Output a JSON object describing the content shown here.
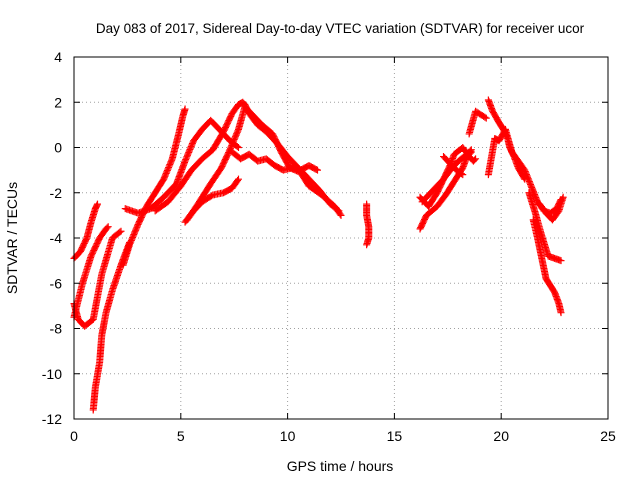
{
  "chart_data": {
    "type": "scatter",
    "title": "Day 083 of 2017, Sidereal Day-to-day VTEC variation (SDTVAR) for receiver ucor",
    "xlabel": "GPS time / hours",
    "ylabel": "SDTVAR / TECUs",
    "xlim": [
      0,
      25
    ],
    "ylim": [
      -12,
      4
    ],
    "xticks": [
      0,
      5,
      10,
      15,
      20,
      25
    ],
    "yticks": [
      -12,
      -10,
      -8,
      -6,
      -4,
      -2,
      0,
      2,
      4
    ],
    "xtick_labels": [
      "0",
      "5",
      "10",
      "15",
      "20",
      "25"
    ],
    "ytick_labels": [
      "-12",
      "-10",
      "-8",
      "-6",
      "-4",
      "-2",
      "0",
      "2",
      "4"
    ],
    "grid": true,
    "marker": "+",
    "color": "#ff0000",
    "series": [
      {
        "x": [
          0.0,
          0.3,
          0.6,
          0.8,
          1.0,
          1.1
        ],
        "y": [
          -4.9,
          -4.6,
          -4.0,
          -3.3,
          -2.7,
          -2.5
        ]
      },
      {
        "x": [
          0.0,
          0.2,
          0.5,
          0.9,
          1.3,
          1.8,
          2.2
        ],
        "y": [
          -6.9,
          -7.6,
          -7.9,
          -7.6,
          -5.6,
          -4.0,
          -3.7
        ]
      },
      {
        "x": [
          0.0,
          0.4,
          0.8,
          1.2,
          1.5,
          1.6
        ],
        "y": [
          -7.5,
          -6.0,
          -4.8,
          -4.0,
          -3.6,
          -3.5
        ]
      },
      {
        "x": [
          0.9,
          1.0,
          1.2,
          1.3,
          1.5,
          1.8,
          2.2,
          2.6
        ],
        "y": [
          -11.6,
          -10.6,
          -9.5,
          -8.3,
          -7.3,
          -6.3,
          -5.2,
          -4.2
        ]
      },
      {
        "x": [
          2.3,
          2.6,
          3.0,
          3.4,
          3.8,
          4.2,
          4.6,
          4.9,
          5.1,
          5.2
        ],
        "y": [
          -5.2,
          -4.3,
          -3.4,
          -2.6,
          -2.0,
          -1.4,
          -0.5,
          0.6,
          1.4,
          1.7
        ]
      },
      {
        "x": [
          2.4,
          3.0,
          3.6,
          4.2,
          4.8,
          5.2,
          5.6,
          6.0,
          6.4,
          6.9,
          7.3,
          7.7
        ],
        "y": [
          -2.7,
          -2.9,
          -2.7,
          -2.2,
          -1.6,
          -0.6,
          0.3,
          0.8,
          1.2,
          0.7,
          0.3,
          0.0
        ]
      },
      {
        "x": [
          5.3,
          5.8,
          6.4,
          6.9,
          7.3,
          7.7,
          8.0,
          8.4,
          8.8,
          9.3,
          9.7,
          10.1,
          10.6,
          11.0,
          11.6,
          12.2,
          12.5
        ],
        "y": [
          -3.2,
          -2.5,
          -1.6,
          -0.9,
          -0.1,
          0.8,
          1.8,
          1.4,
          1.0,
          0.6,
          -0.2,
          -0.9,
          -1.1,
          -1.7,
          -2.1,
          -2.6,
          -3.0
        ]
      },
      {
        "x": [
          3.8,
          4.4,
          5.0,
          5.5,
          6.0,
          6.5,
          7.0,
          7.4,
          7.7,
          7.9,
          8.0,
          8.2,
          8.6,
          9.0,
          9.5,
          10.0,
          10.5,
          11.0,
          11.5,
          12.0,
          12.4
        ],
        "y": [
          -2.8,
          -2.4,
          -1.7,
          -1.0,
          -0.5,
          -0.1,
          0.7,
          1.5,
          1.9,
          2.0,
          1.9,
          1.5,
          1.0,
          0.7,
          0.2,
          -0.4,
          -0.9,
          -1.4,
          -1.9,
          -2.5,
          -2.8
        ]
      },
      {
        "x": [
          5.2,
          5.6,
          6.0,
          6.5,
          7.0,
          7.4,
          7.7
        ],
        "y": [
          -3.3,
          -2.8,
          -2.4,
          -2.1,
          -2.0,
          -1.8,
          -1.4
        ]
      },
      {
        "x": [
          7.4,
          7.8,
          8.2,
          8.6,
          9.0,
          9.4,
          9.8,
          10.2,
          10.6,
          11.0,
          11.4
        ],
        "y": [
          -0.2,
          -0.5,
          -0.3,
          -0.6,
          -0.5,
          -0.8,
          -1.0,
          -0.9,
          -1.0,
          -0.8,
          -1.0
        ]
      },
      {
        "x": [
          13.7,
          13.7,
          13.8,
          13.8,
          13.7
        ],
        "y": [
          -2.5,
          -3.0,
          -3.5,
          -4.0,
          -4.3
        ]
      },
      {
        "x": [
          16.2,
          16.5,
          17.0,
          17.4,
          17.8,
          18.2,
          18.4,
          18.6
        ],
        "y": [
          -3.6,
          -3.0,
          -2.6,
          -2.1,
          -1.5,
          -0.9,
          -0.4,
          -0.2
        ]
      },
      {
        "x": [
          16.3,
          16.8,
          17.3,
          17.7,
          18.0,
          18.4,
          18.6
        ],
        "y": [
          -2.4,
          -1.9,
          -1.4,
          -0.9,
          -0.6,
          -0.3,
          -0.1
        ]
      },
      {
        "x": [
          16.2,
          16.6,
          17.0,
          17.3,
          17.6,
          17.8,
          18.2,
          18.5,
          18.7,
          18.8
        ],
        "y": [
          -2.2,
          -2.6,
          -2.0,
          -1.4,
          -0.8,
          -0.3,
          0.0,
          -0.4,
          -0.6,
          -0.5
        ]
      },
      {
        "x": [
          17.3,
          17.6,
          17.9,
          18.2
        ],
        "y": [
          -0.4,
          -0.7,
          -1.0,
          -1.2
        ]
      },
      {
        "x": [
          18.5,
          18.8,
          19.3
        ],
        "y": [
          0.6,
          1.6,
          1.3
        ]
      },
      {
        "x": [
          19.4,
          19.6,
          19.9,
          20.1,
          20.3,
          20.4,
          20.6,
          20.8,
          21.1
        ],
        "y": [
          2.1,
          1.6,
          1.1,
          0.8,
          0.4,
          0.0,
          -0.4,
          -0.9,
          -1.4
        ]
      },
      {
        "x": [
          19.4,
          19.7,
          19.9,
          20.2,
          20.5,
          20.8,
          21.1,
          21.4,
          21.7,
          22.0,
          22.3,
          22.6,
          22.8
        ],
        "y": [
          -1.2,
          0.4,
          0.3,
          0.8,
          -0.2,
          -0.6,
          -1.0,
          -1.7,
          -2.4,
          -2.8,
          -2.9,
          -2.7,
          -2.3
        ]
      },
      {
        "x": [
          21.3,
          21.6,
          21.9,
          22.2,
          22.5,
          22.8
        ],
        "y": [
          -2.0,
          -2.9,
          -3.9,
          -4.8,
          -4.9,
          -5.0
        ]
      },
      {
        "x": [
          21.5,
          21.7,
          21.9,
          22.1,
          22.3,
          22.5,
          22.7,
          22.8
        ],
        "y": [
          -3.2,
          -4.0,
          -4.9,
          -5.8,
          -6.1,
          -6.4,
          -6.9,
          -7.3
        ]
      },
      {
        "x": [
          21.8,
          22.1,
          22.4,
          22.7,
          22.9
        ],
        "y": [
          -2.5,
          -2.9,
          -3.2,
          -2.8,
          -2.2
        ]
      }
    ]
  }
}
